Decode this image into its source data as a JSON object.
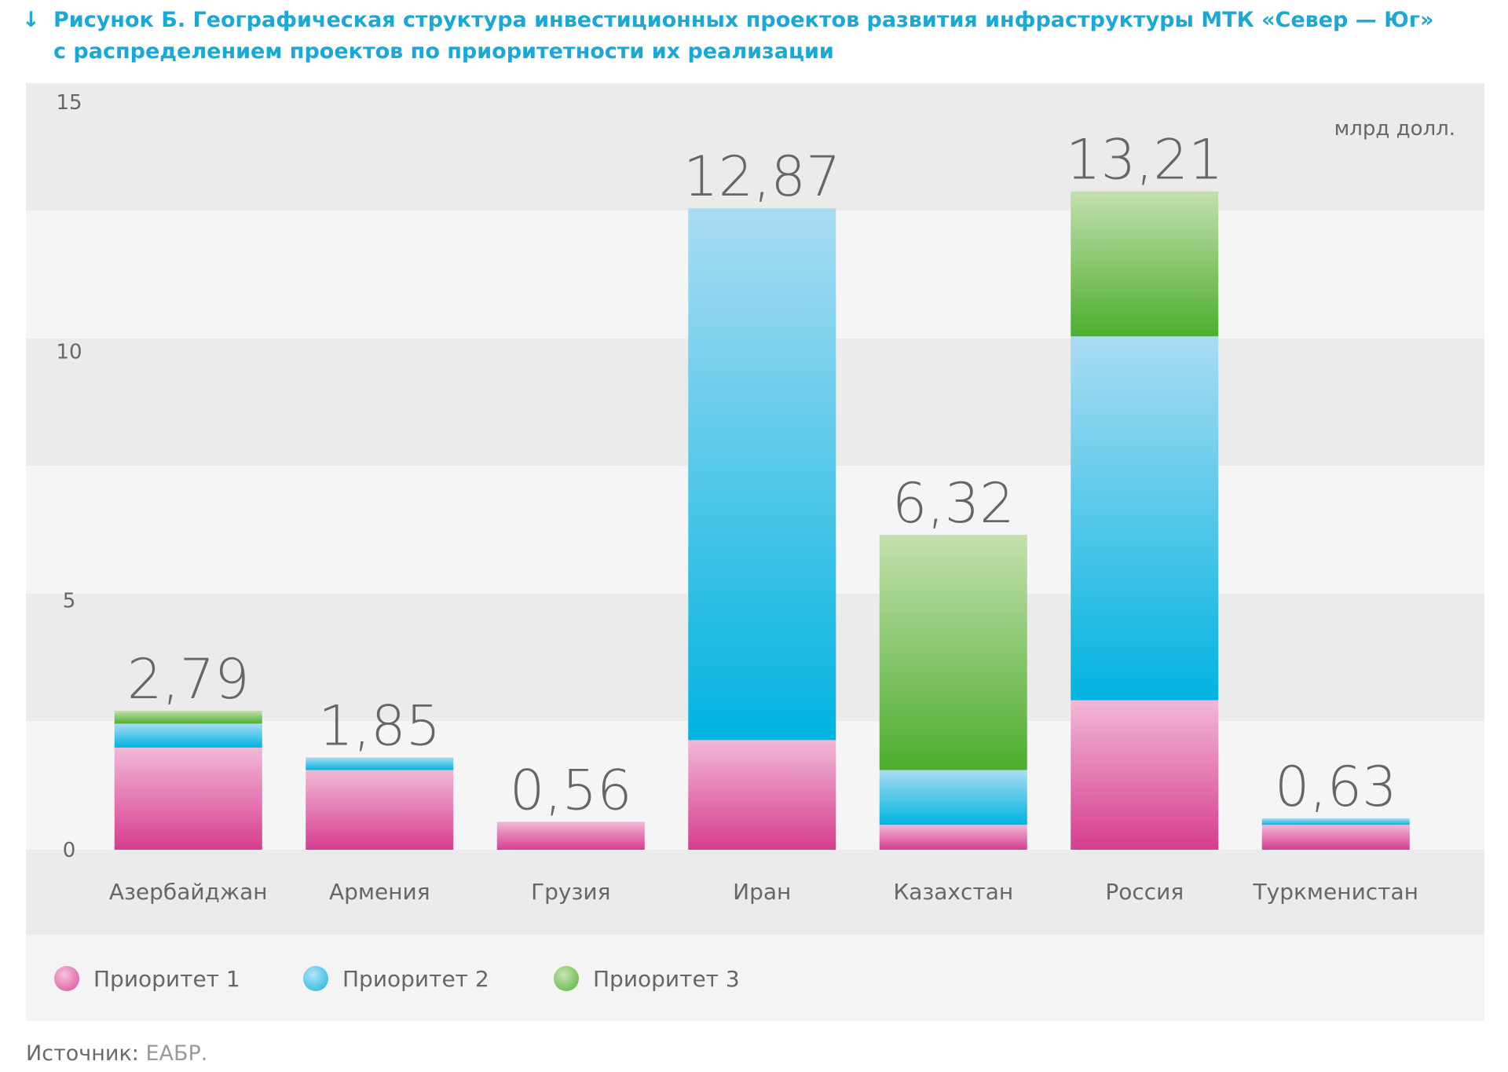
{
  "title": {
    "arrow": "↓",
    "line1": "Рисунок Б. Географическая структура инвестиционных проектов развития инфраструктуры МТК «Север — Юг»",
    "line2": "с распределением проектов по приоритетности их реализации"
  },
  "colors": {
    "p1": [
      "#f2b8d6",
      "#d63d8f"
    ],
    "p2": [
      "#aadcf3",
      "#00b4e0"
    ],
    "p3": [
      "#c4dfae",
      "#4daf2e"
    ],
    "band_dark": "#ebebeb",
    "band_light": "#f5f5f5",
    "title": "#1aa9d6"
  },
  "chart_data": {
    "type": "bar",
    "stacked": true,
    "unit": "млрд долл.",
    "categories": [
      "Азербайджан",
      "Армения",
      "Грузия",
      "Иран",
      "Казахстан",
      "Россия",
      "Туркменистан"
    ],
    "series": [
      {
        "name": "Приоритет 1",
        "values": [
          2.05,
          1.6,
          0.56,
          2.2,
          0.5,
          3.0,
          0.5
        ]
      },
      {
        "name": "Приоритет 2",
        "values": [
          0.48,
          0.25,
          0,
          10.67,
          1.1,
          7.3,
          0.13
        ]
      },
      {
        "name": "Приоритет 3",
        "values": [
          0.26,
          0,
          0,
          0,
          4.72,
          2.91,
          0
        ]
      }
    ],
    "totals": [
      "2,79",
      "1,85",
      "0,56",
      "12,87",
      "6,32",
      "13,21",
      "0,63"
    ],
    "total_values": [
      2.79,
      1.85,
      0.56,
      12.87,
      6.32,
      13.21,
      0.63
    ],
    "y_ticks": [
      "0",
      "5",
      "10",
      "15"
    ],
    "ylim": [
      0,
      15
    ],
    "legend_position": "bottom",
    "grid": false
  },
  "source": {
    "label": "Источник:",
    "value": "ЕАБР."
  }
}
